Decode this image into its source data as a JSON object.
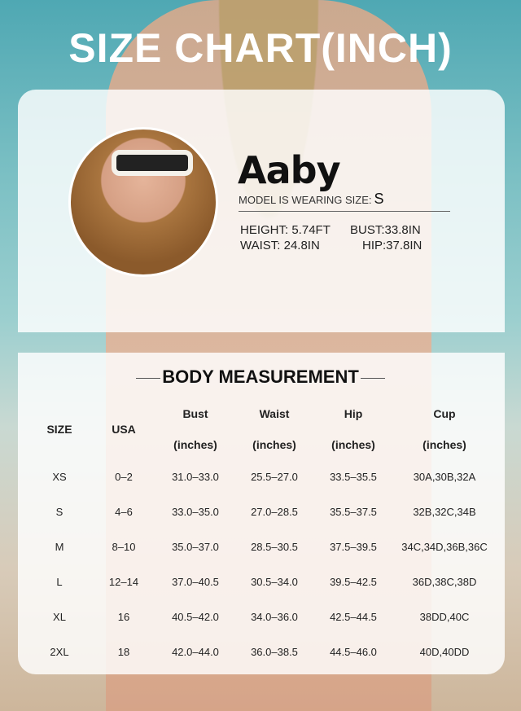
{
  "title": "SIZE CHART(INCH)",
  "model": {
    "name": "Aaby",
    "wearing_label": "MODEL IS WEARING SIZE:",
    "wearing_size": "S",
    "height": "HEIGHT: 5.74FT",
    "bust": "BUST:33.8IN",
    "waist": "WAIST: 24.8IN",
    "hip": "HIP:37.8IN"
  },
  "table": {
    "title": "BODY MEASUREMENT",
    "headers": [
      {
        "label": "SIZE",
        "unit": ""
      },
      {
        "label": "USA",
        "unit": ""
      },
      {
        "label": "Bust",
        "unit": "(inches)"
      },
      {
        "label": "Waist",
        "unit": "(inches)"
      },
      {
        "label": "Hip",
        "unit": "(inches)"
      },
      {
        "label": "Cup",
        "unit": "(inches)"
      }
    ],
    "rows": [
      [
        "XS",
        "0–2",
        "31.0–33.0",
        "25.5–27.0",
        "33.5–35.5",
        "30A,30B,32A"
      ],
      [
        "S",
        "4–6",
        "33.0–35.0",
        "27.0–28.5",
        "35.5–37.5",
        "32B,32C,34B"
      ],
      [
        "M",
        "8–10",
        "35.0–37.0",
        "28.5–30.5",
        "37.5–39.5",
        "34C,34D,36B,36C"
      ],
      [
        "L",
        "12–14",
        "37.0–40.5",
        "30.5–34.0",
        "39.5–42.5",
        "36D,38C,38D"
      ],
      [
        "XL",
        "16",
        "40.5–42.0",
        "34.0–36.0",
        "42.5–44.5",
        "38DD,40C"
      ],
      [
        "2XL",
        "18",
        "42.0–44.0",
        "36.0–38.5",
        "44.5–46.0",
        "40D,40DD"
      ]
    ]
  }
}
